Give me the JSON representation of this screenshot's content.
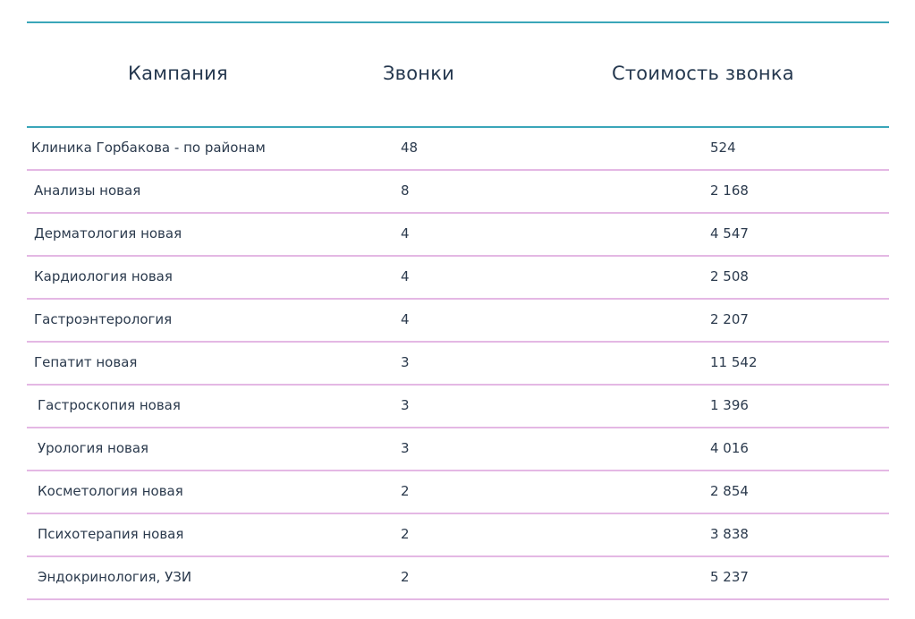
{
  "table": {
    "headers": {
      "campaign": "Кампания",
      "calls": "Звонки",
      "cost": "Стоимость звонка"
    },
    "rows": [
      {
        "campaign": "Клиника Горбакова - по районам",
        "calls": "48",
        "cost": "524"
      },
      {
        "campaign": "Анализы новая",
        "calls": "8",
        "cost": "2 168"
      },
      {
        "campaign": "Дерматология новая",
        "calls": "4",
        "cost": "4 547"
      },
      {
        "campaign": "Кардиология новая",
        "calls": "4",
        "cost": "2 508"
      },
      {
        "campaign": "Гастроэнтерология",
        "calls": "4",
        "cost": "2 207"
      },
      {
        "campaign": "Гепатит новая",
        "calls": "3",
        "cost": "11 542"
      },
      {
        "campaign": "Гастроскопия новая",
        "calls": "3",
        "cost": "1 396"
      },
      {
        "campaign": "Урология новая",
        "calls": "3",
        "cost": "4 016"
      },
      {
        "campaign": "Косметология новая",
        "calls": "2",
        "cost": "2 854"
      },
      {
        "campaign": "Психотерапия новая",
        "calls": "2",
        "cost": "3 838"
      },
      {
        "campaign": "Эндокринология, УЗИ",
        "calls": "2",
        "cost": "5 237"
      }
    ]
  },
  "colors": {
    "header_rule": "#3aa6b9",
    "row_rule": "#e4b8e4",
    "text": "#2b3a4d"
  }
}
